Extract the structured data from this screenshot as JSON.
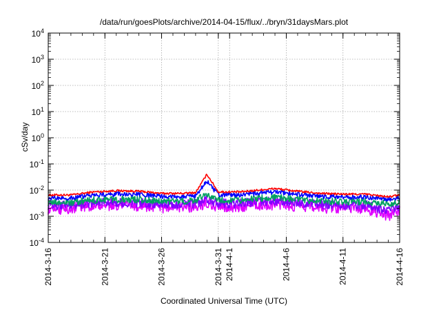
{
  "chart_data": {
    "type": "line",
    "title": "/data/run/goesPlots/archive/2014-04-15/flux/../bryn/31daysMars.plot",
    "xlabel": "Coordinated Universal Time (UTC)",
    "ylabel": "cSv/day",
    "yscale": "log",
    "ylim_exp": [
      -4,
      4
    ],
    "y_ticks": [
      {
        "base": "10",
        "exp": "-4"
      },
      {
        "base": "10",
        "exp": "-3"
      },
      {
        "base": "10",
        "exp": "-2"
      },
      {
        "base": "10",
        "exp": "-1"
      },
      {
        "base": "10",
        "exp": "0"
      },
      {
        "base": "10",
        "exp": "1"
      },
      {
        "base": "10",
        "exp": "2"
      },
      {
        "base": "10",
        "exp": "3"
      },
      {
        "base": "10",
        "exp": "4"
      }
    ],
    "x_range": [
      "2014-03-16",
      "2014-04-16"
    ],
    "x_ticks": [
      "2014-3-16",
      "2014-3-21",
      "2014-3-26",
      "2014-3-31",
      "2014-4-1",
      "2014-4-6",
      "2014-4-11",
      "2014-4-16"
    ],
    "x_tick_dates": [
      "2014-03-16",
      "2014-03-21",
      "2014-03-26",
      "2014-03-31",
      "2014-04-01",
      "2014-04-06",
      "2014-04-11",
      "2014-04-16"
    ],
    "grid": true,
    "legend": "none",
    "series_style": [
      {
        "color": "#ff0000"
      },
      {
        "color": "#0000ff"
      },
      {
        "color": "#00a060"
      },
      {
        "color": "#8000ff"
      },
      {
        "color": "#e000ff"
      }
    ],
    "series": [
      {
        "color": "#ff0000",
        "x": [
          "2014-03-16",
          "2014-03-18",
          "2014-03-20",
          "2014-03-22",
          "2014-03-24",
          "2014-03-26",
          "2014-03-28",
          "2014-03-29",
          "2014-03-30",
          "2014-03-31",
          "2014-04-02",
          "2014-04-03",
          "2014-04-05",
          "2014-04-07",
          "2014-04-09",
          "2014-04-11",
          "2014-04-13",
          "2014-04-15",
          "2014-04-16"
        ],
        "y": [
          0.0065,
          0.0065,
          0.0085,
          0.0095,
          0.009,
          0.0075,
          0.0075,
          0.008,
          0.04,
          0.0085,
          0.0085,
          0.0095,
          0.0115,
          0.009,
          0.0075,
          0.007,
          0.007,
          0.0055,
          0.0065
        ]
      },
      {
        "color": "#0000ff",
        "x": [
          "2014-03-16",
          "2014-03-18",
          "2014-03-20",
          "2014-03-22",
          "2014-03-24",
          "2014-03-26",
          "2014-03-28",
          "2014-03-29",
          "2014-03-30",
          "2014-03-31",
          "2014-04-02",
          "2014-04-03",
          "2014-04-05",
          "2014-04-07",
          "2014-04-09",
          "2014-04-11",
          "2014-04-13",
          "2014-04-15",
          "2014-04-16"
        ],
        "y": [
          0.005,
          0.005,
          0.0065,
          0.007,
          0.0068,
          0.0058,
          0.0058,
          0.006,
          0.022,
          0.0065,
          0.0065,
          0.0072,
          0.0085,
          0.007,
          0.0058,
          0.0054,
          0.0054,
          0.0043,
          0.005
        ]
      },
      {
        "color": "#00a060",
        "x": [
          "2014-03-16",
          "2014-03-18",
          "2014-03-20",
          "2014-03-22",
          "2014-03-24",
          "2014-03-26",
          "2014-03-28",
          "2014-03-29",
          "2014-03-30",
          "2014-03-31",
          "2014-04-02",
          "2014-04-03",
          "2014-04-05",
          "2014-04-07",
          "2014-04-09",
          "2014-04-11",
          "2014-04-13",
          "2014-04-15",
          "2014-04-16"
        ],
        "y": [
          0.0033,
          0.0033,
          0.0042,
          0.0045,
          0.0044,
          0.0038,
          0.0038,
          0.004,
          0.007,
          0.0042,
          0.0042,
          0.0046,
          0.0053,
          0.0045,
          0.0038,
          0.0036,
          0.0036,
          0.003,
          0.0034
        ]
      },
      {
        "color": "#8000ff",
        "x": [
          "2014-03-16",
          "2014-03-18",
          "2014-03-20",
          "2014-03-22",
          "2014-03-24",
          "2014-03-26",
          "2014-03-28",
          "2014-03-29",
          "2014-03-30",
          "2014-03-31",
          "2014-04-02",
          "2014-04-03",
          "2014-04-05",
          "2014-04-07",
          "2014-04-09",
          "2014-04-11",
          "2014-04-13",
          "2014-04-15",
          "2014-04-16"
        ],
        "y": [
          0.0026,
          0.0026,
          0.0032,
          0.0034,
          0.0033,
          0.0029,
          0.0029,
          0.003,
          0.0045,
          0.0031,
          0.0031,
          0.0034,
          0.0038,
          0.0033,
          0.0029,
          0.0027,
          0.0027,
          0.0016,
          0.0025
        ]
      },
      {
        "color": "#e000ff",
        "x": [
          "2014-03-16",
          "2014-03-18",
          "2014-03-20",
          "2014-03-22",
          "2014-03-24",
          "2014-03-26",
          "2014-03-28",
          "2014-03-29",
          "2014-03-30",
          "2014-03-31",
          "2014-04-02",
          "2014-04-03",
          "2014-04-05",
          "2014-04-07",
          "2014-04-09",
          "2014-04-11",
          "2014-04-13",
          "2014-04-15",
          "2014-04-16"
        ],
        "y": [
          0.0019,
          0.002,
          0.0025,
          0.0027,
          0.0026,
          0.0022,
          0.0022,
          0.0023,
          0.0032,
          0.0024,
          0.0024,
          0.0026,
          0.0029,
          0.0025,
          0.0022,
          0.002,
          0.002,
          0.001,
          0.0016
        ]
      }
    ]
  }
}
